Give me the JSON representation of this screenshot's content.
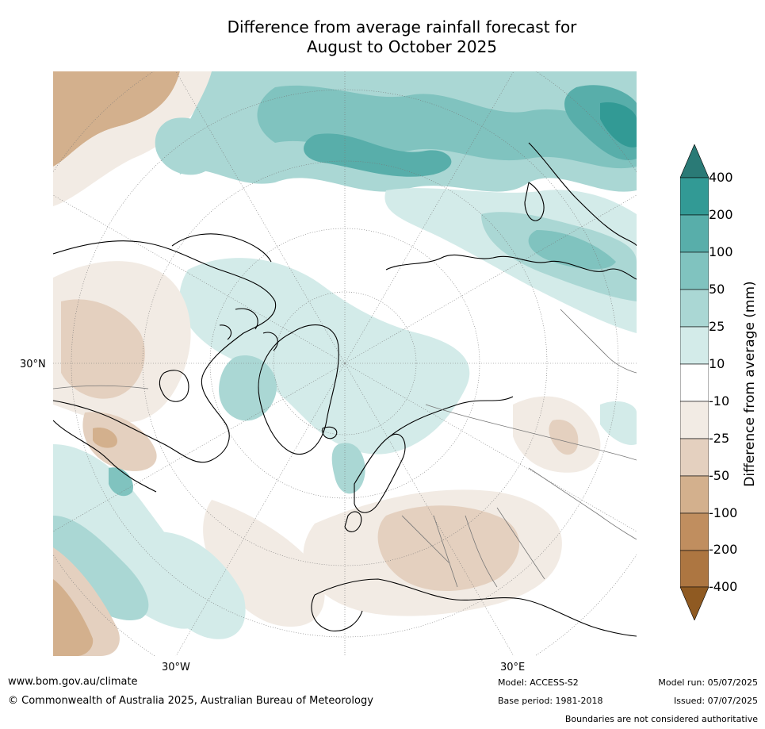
{
  "title_line1": "Difference from average rainfall forecast for",
  "title_line2": "August to October 2025",
  "graticule": {
    "lat_label": "30°N",
    "lon_labels": [
      "30°W",
      "30°E"
    ]
  },
  "colorbar": {
    "label": "Difference from average (mm)",
    "ticks": [
      "400",
      "200",
      "100",
      "50",
      "25",
      "10",
      "-10",
      "-25",
      "-50",
      "-100",
      "-200",
      "-400"
    ],
    "colors": {
      "gt400": "#2a7a76",
      "200_400": "#329a95",
      "100_200": "#58aeaa",
      "50_100": "#80c3bf",
      "25_50": "#aad7d4",
      "10_25": "#d3ebe9",
      "neutral": "#ffffff",
      "m10_m25": "#f2ebe4",
      "m25_m50": "#e4d0bf",
      "m50_m100": "#d3b08d",
      "m100_m200": "#c08e5f",
      "m200_m400": "#ad7641",
      "lt400": "#8f5a22"
    }
  },
  "footer": {
    "website": "www.bom.gov.au/climate",
    "copyright": "© Commonwealth of Australia 2025, Australian Bureau of Meteorology",
    "model": "Model: ACCESS-S2",
    "base_period": "Base period: 1981-2018",
    "model_run": "Model run: 05/07/2025",
    "issued": "Issued: 07/07/2025",
    "disclaimer": "Boundaries are not considered authoritative"
  }
}
